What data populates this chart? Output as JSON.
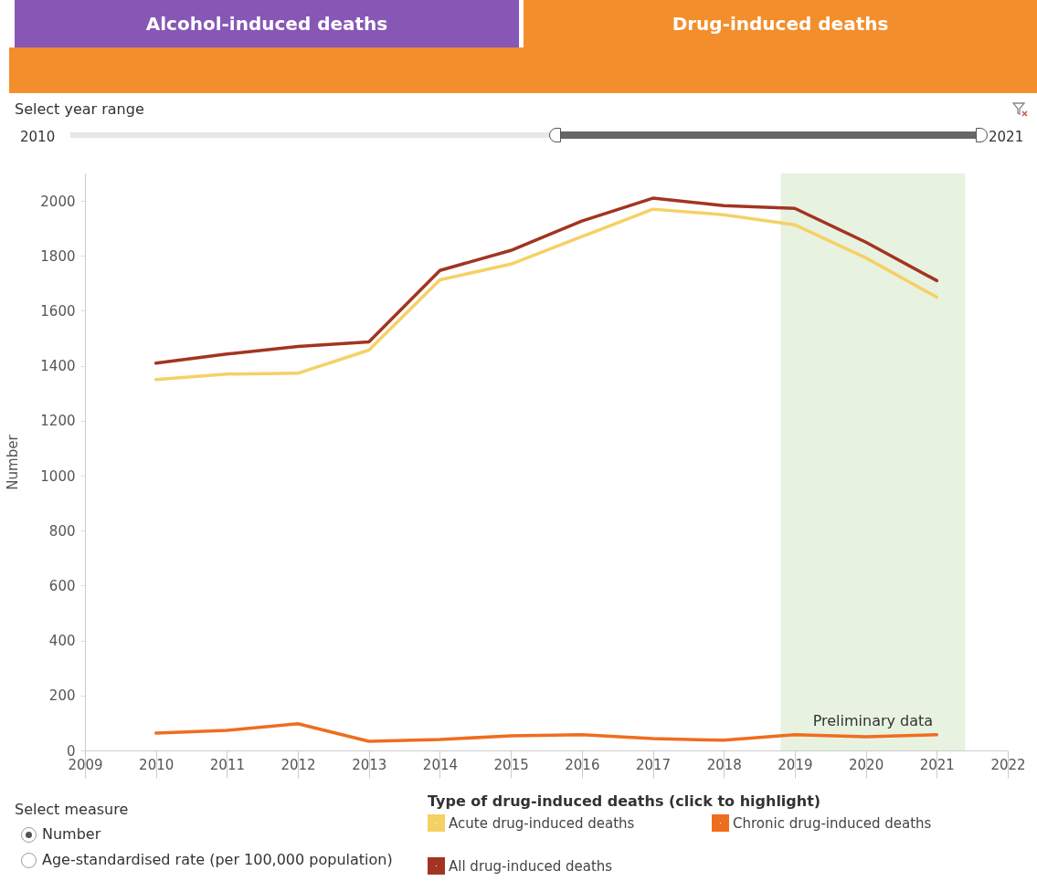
{
  "chart_data": [
    {
      "type": "other",
      "annotations": [
        "Alcohol-induced deaths",
        "Drug-induced deaths",
        "Select year range",
        "2010",
        "2021",
        "Select measure",
        "Number",
        "Age-standardised rate (per 100,000 population)"
      ]
    },
    {
      "type": "line",
      "ylabel": "Number",
      "legend_title": "Type of drug-induced deaths (click to highlight)",
      "x": [
        2010,
        2011,
        2012,
        2013,
        2014,
        2015,
        2016,
        2017,
        2018,
        2019,
        2020,
        2021
      ],
      "series": [
        {
          "name": "Acute drug-induced deaths",
          "color": "#f5d165",
          "values": [
            1350,
            1370,
            1373,
            1457,
            1713,
            1770,
            1870,
            1970,
            1950,
            1913,
            1793,
            1650
          ]
        },
        {
          "name": "Chronic drug-induced deaths",
          "color": "#ef6d1f",
          "values": [
            63,
            73,
            97,
            33,
            40,
            53,
            57,
            43,
            37,
            57,
            50,
            57
          ]
        },
        {
          "name": "All drug-induced deaths",
          "color": "#a33422",
          "values": [
            1410,
            1443,
            1470,
            1487,
            1747,
            1820,
            1927,
            2010,
            1983,
            1973,
            1850,
            1710
          ]
        }
      ],
      "xlim": [
        2009,
        2022
      ],
      "xticks": [
        2009,
        2010,
        2011,
        2012,
        2013,
        2014,
        2015,
        2016,
        2017,
        2018,
        2019,
        2020,
        2021,
        2022
      ],
      "ylim": [
        0,
        2100
      ],
      "yticks": [
        0,
        200,
        400,
        600,
        800,
        1000,
        1200,
        1400,
        1600,
        1800,
        2000
      ],
      "bands": [
        {
          "axis": "x",
          "from": 2018.8,
          "to": 2021.4,
          "label": "Preliminary data",
          "color": "#e8f2e0"
        }
      ],
      "grid": false,
      "legend": "bottom",
      "marker": "none",
      "line_style": "solid"
    }
  ]
}
